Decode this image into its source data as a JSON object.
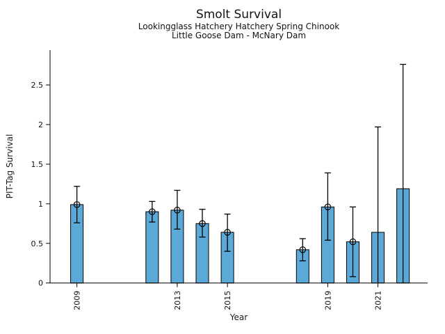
{
  "figure": {
    "title": "Smolt Survival",
    "subtitle_line1": "Lookingglass Hatchery Hatchery Spring Chinook",
    "subtitle_line2": "Little Goose Dam - McNary Dam"
  },
  "chart_data": {
    "type": "bar",
    "title": "Smolt Survival",
    "subtitle": "Lookingglass Hatchery Hatchery Spring Chinook — Little Goose Dam - McNary Dam",
    "xlabel": "Year",
    "ylabel": "PIT-Tag Survival",
    "x_tick_years": [
      2009,
      2013,
      2015,
      2019,
      2021
    ],
    "y_ticks": [
      0,
      0.5,
      1,
      1.5,
      2,
      2.5
    ],
    "xlim": [
      2007.93,
      2022.98
    ],
    "ylim": [
      0,
      2.94
    ],
    "bar_width_years": 0.5,
    "grid": false,
    "legend": null,
    "colors": {
      "bar_fill": "#5BA9D6",
      "bar_edge": "#000000",
      "errorbar": "#000000",
      "axis": "#000000"
    },
    "bars": [
      {
        "year": 2009,
        "value": 0.99,
        "ci_low": 0.76,
        "ci_high": 1.22,
        "marker": true
      },
      {
        "year": 2012,
        "value": 0.9,
        "ci_low": 0.77,
        "ci_high": 1.03,
        "marker": true
      },
      {
        "year": 2013,
        "value": 0.92,
        "ci_low": 0.68,
        "ci_high": 1.17,
        "marker": true
      },
      {
        "year": 2014,
        "value": 0.75,
        "ci_low": 0.58,
        "ci_high": 0.93,
        "marker": true
      },
      {
        "year": 2015,
        "value": 0.64,
        "ci_low": 0.4,
        "ci_high": 0.87,
        "marker": true
      },
      {
        "year": 2018,
        "value": 0.42,
        "ci_low": 0.28,
        "ci_high": 0.56,
        "marker": true
      },
      {
        "year": 2019,
        "value": 0.96,
        "ci_low": 0.54,
        "ci_high": 1.39,
        "marker": true
      },
      {
        "year": 2020,
        "value": 0.52,
        "ci_low": 0.08,
        "ci_high": 0.96,
        "marker": true
      },
      {
        "year": 2021,
        "value": 0.64,
        "ci_low": 0.0,
        "ci_high": 1.97,
        "marker": false
      },
      {
        "year": 2022,
        "value": 1.19,
        "ci_low": 0.0,
        "ci_high": 2.76,
        "marker": false
      }
    ]
  }
}
